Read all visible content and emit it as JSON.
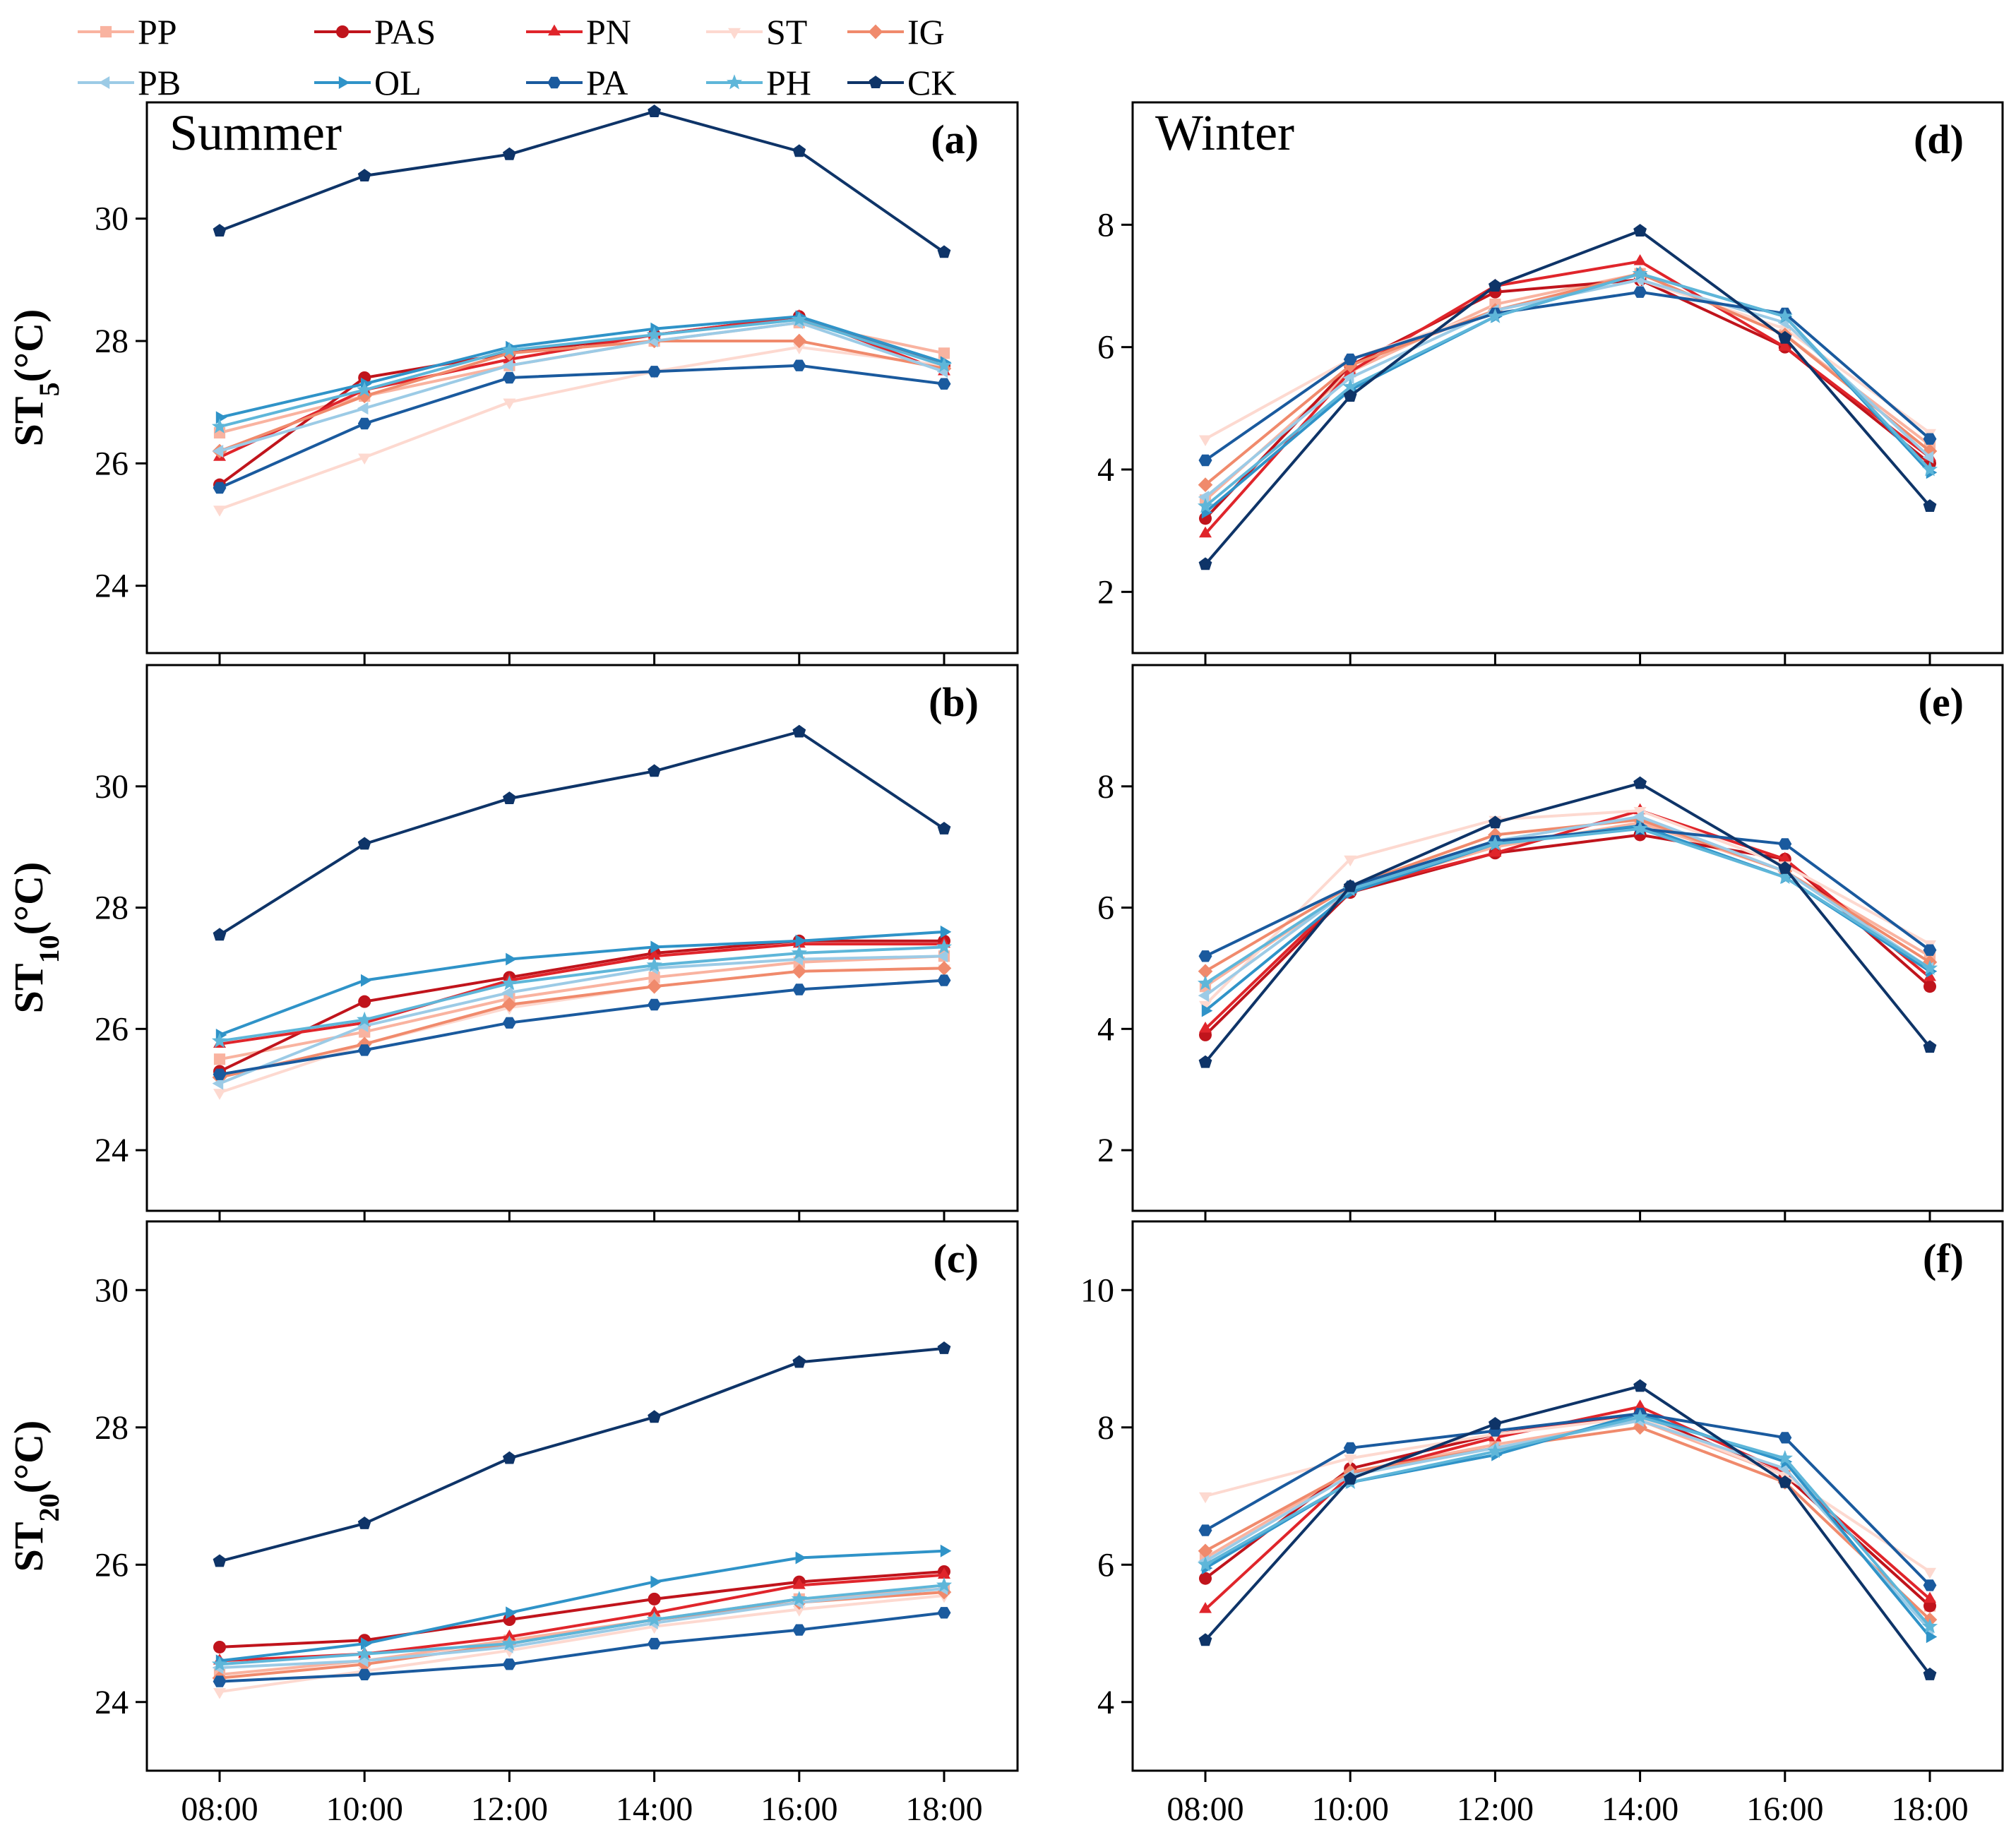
{
  "legend": [
    {
      "name": "PP",
      "color": "#f9b3a0",
      "marker": "square"
    },
    {
      "name": "PAS",
      "color": "#c0141c",
      "marker": "circle"
    },
    {
      "name": "PN",
      "color": "#e0252b",
      "marker": "triangle-up"
    },
    {
      "name": "ST",
      "color": "#fdd9d0",
      "marker": "triangle-down"
    },
    {
      "name": "IG",
      "color": "#f08a6c",
      "marker": "diamond"
    },
    {
      "name": "PB",
      "color": "#9ccbe6",
      "marker": "triangle-left"
    },
    {
      "name": "OL",
      "color": "#2f93c8",
      "marker": "triangle-right"
    },
    {
      "name": "PA",
      "color": "#1a5a9e",
      "marker": "hexagon"
    },
    {
      "name": "PH",
      "color": "#5eb6d9",
      "marker": "star"
    },
    {
      "name": "CK",
      "color": "#0e3468",
      "marker": "pentagon"
    }
  ],
  "row_labels": [
    {
      "main": "ST",
      "sub": "5",
      "unit": "(°C)"
    },
    {
      "main": "ST",
      "sub": "10",
      "unit": "(°C)"
    },
    {
      "main": "ST",
      "sub": "20",
      "unit": "(°C)"
    }
  ],
  "chart_data": [
    {
      "id": "a",
      "label": "(a)",
      "season": "Summer",
      "type": "line",
      "x": [
        "08:00",
        "10:00",
        "12:00",
        "14:00",
        "16:00",
        "18:00"
      ],
      "ylim": [
        22.9,
        31.9
      ],
      "yticks": [
        24,
        26,
        28,
        30
      ],
      "series": [
        {
          "name": "PP",
          "values": [
            26.5,
            27.1,
            27.6,
            28.0,
            28.3,
            27.8
          ]
        },
        {
          "name": "PAS",
          "values": [
            25.65,
            27.4,
            27.8,
            28.1,
            28.4,
            27.6
          ]
        },
        {
          "name": "PN",
          "values": [
            26.1,
            27.2,
            27.7,
            28.1,
            28.4,
            27.5
          ]
        },
        {
          "name": "ST",
          "values": [
            25.25,
            26.1,
            27.0,
            27.5,
            27.9,
            27.6
          ]
        },
        {
          "name": "IG",
          "values": [
            26.2,
            27.1,
            27.8,
            28.0,
            28.0,
            27.55
          ]
        },
        {
          "name": "PB",
          "values": [
            26.2,
            26.9,
            27.6,
            28.0,
            28.3,
            27.5
          ]
        },
        {
          "name": "OL",
          "values": [
            26.75,
            27.3,
            27.9,
            28.2,
            28.4,
            27.65
          ]
        },
        {
          "name": "PA",
          "values": [
            25.6,
            26.65,
            27.4,
            27.5,
            27.6,
            27.3
          ]
        },
        {
          "name": "PH",
          "values": [
            26.6,
            27.2,
            27.85,
            28.1,
            28.35,
            27.6
          ]
        },
        {
          "name": "CK",
          "values": [
            29.8,
            30.7,
            31.05,
            31.75,
            31.1,
            29.45
          ]
        }
      ]
    },
    {
      "id": "d",
      "label": "(d)",
      "season": "Winter",
      "type": "line",
      "x": [
        "08:00",
        "10:00",
        "12:00",
        "14:00",
        "16:00",
        "18:00"
      ],
      "ylim": [
        1.0,
        10.0
      ],
      "yticks": [
        2,
        4,
        6,
        8
      ],
      "series": [
        {
          "name": "PP",
          "values": [
            3.5,
            5.6,
            6.7,
            7.2,
            6.2,
            4.4
          ]
        },
        {
          "name": "PAS",
          "values": [
            3.2,
            5.7,
            6.9,
            7.1,
            6.0,
            4.1
          ]
        },
        {
          "name": "PN",
          "values": [
            2.95,
            5.6,
            7.0,
            7.4,
            6.0,
            4.2
          ]
        },
        {
          "name": "ST",
          "values": [
            4.5,
            5.8,
            6.6,
            7.1,
            6.3,
            4.6
          ]
        },
        {
          "name": "IG",
          "values": [
            3.75,
            5.7,
            6.6,
            7.2,
            6.2,
            4.3
          ]
        },
        {
          "name": "PB",
          "values": [
            3.55,
            5.5,
            6.6,
            7.1,
            6.4,
            4.2
          ]
        },
        {
          "name": "OL",
          "values": [
            3.3,
            5.3,
            6.5,
            7.2,
            6.5,
            3.95
          ]
        },
        {
          "name": "PA",
          "values": [
            4.15,
            5.8,
            6.55,
            6.9,
            6.55,
            4.5
          ]
        },
        {
          "name": "PH",
          "values": [
            3.4,
            5.35,
            6.5,
            7.2,
            6.5,
            4.0
          ]
        },
        {
          "name": "CK",
          "values": [
            2.45,
            5.2,
            7.0,
            7.9,
            6.15,
            3.4
          ]
        }
      ]
    },
    {
      "id": "b",
      "label": "(b)",
      "season": "",
      "type": "line",
      "x": [
        "08:00",
        "10:00",
        "12:00",
        "14:00",
        "16:00",
        "18:00"
      ],
      "ylim": [
        23.0,
        32.0
      ],
      "yticks": [
        24,
        26,
        28,
        30
      ],
      "series": [
        {
          "name": "PP",
          "values": [
            25.5,
            25.95,
            26.5,
            26.85,
            27.1,
            27.2
          ]
        },
        {
          "name": "PAS",
          "values": [
            25.3,
            26.45,
            26.85,
            27.25,
            27.45,
            27.45
          ]
        },
        {
          "name": "PN",
          "values": [
            25.75,
            26.1,
            26.8,
            27.2,
            27.4,
            27.4
          ]
        },
        {
          "name": "ST",
          "values": [
            24.95,
            25.75,
            26.35,
            26.7,
            26.95,
            27.0
          ]
        },
        {
          "name": "IG",
          "values": [
            25.2,
            25.75,
            26.4,
            26.7,
            26.95,
            27.0
          ]
        },
        {
          "name": "PB",
          "values": [
            25.1,
            26.05,
            26.6,
            27.0,
            27.15,
            27.2
          ]
        },
        {
          "name": "OL",
          "values": [
            25.9,
            26.8,
            27.15,
            27.35,
            27.45,
            27.6
          ]
        },
        {
          "name": "PA",
          "values": [
            25.25,
            25.65,
            26.1,
            26.4,
            26.65,
            26.8
          ]
        },
        {
          "name": "PH",
          "values": [
            25.8,
            26.15,
            26.75,
            27.05,
            27.25,
            27.35
          ]
        },
        {
          "name": "CK",
          "values": [
            27.55,
            29.05,
            29.8,
            30.25,
            30.9,
            29.3
          ]
        }
      ]
    },
    {
      "id": "e",
      "label": "(e)",
      "season": "",
      "type": "line",
      "x": [
        "08:00",
        "10:00",
        "12:00",
        "14:00",
        "16:00",
        "18:00"
      ],
      "ylim": [
        1.0,
        10.0
      ],
      "yticks": [
        2,
        4,
        6,
        8
      ],
      "series": [
        {
          "name": "PP",
          "values": [
            4.7,
            6.3,
            7.0,
            7.4,
            6.6,
            5.2
          ]
        },
        {
          "name": "PAS",
          "values": [
            3.9,
            6.25,
            6.9,
            7.2,
            6.8,
            4.7
          ]
        },
        {
          "name": "PN",
          "values": [
            4.0,
            6.3,
            6.9,
            7.6,
            6.8,
            4.85
          ]
        },
        {
          "name": "ST",
          "values": [
            4.4,
            6.8,
            7.45,
            7.6,
            6.7,
            5.4
          ]
        },
        {
          "name": "IG",
          "values": [
            4.95,
            6.35,
            7.2,
            7.45,
            6.6,
            5.1
          ]
        },
        {
          "name": "PB",
          "values": [
            4.55,
            6.3,
            7.1,
            7.5,
            6.6,
            5.0
          ]
        },
        {
          "name": "OL",
          "values": [
            4.3,
            6.25,
            7.05,
            7.35,
            6.5,
            4.95
          ]
        },
        {
          "name": "PA",
          "values": [
            5.2,
            6.35,
            7.1,
            7.3,
            7.05,
            5.3
          ]
        },
        {
          "name": "PH",
          "values": [
            4.75,
            6.3,
            7.05,
            7.3,
            6.5,
            5.0
          ]
        },
        {
          "name": "CK",
          "values": [
            3.45,
            6.35,
            7.4,
            8.05,
            6.65,
            3.7
          ]
        }
      ]
    },
    {
      "id": "c",
      "label": "(c)",
      "season": "",
      "type": "line",
      "x": [
        "08:00",
        "10:00",
        "12:00",
        "14:00",
        "16:00",
        "18:00"
      ],
      "ylim": [
        23.0,
        31.0
      ],
      "yticks": [
        24,
        26,
        28,
        30
      ],
      "series": [
        {
          "name": "PP",
          "values": [
            24.4,
            24.6,
            24.9,
            25.2,
            25.5,
            25.65
          ]
        },
        {
          "name": "PAS",
          "values": [
            24.8,
            24.9,
            25.2,
            25.5,
            25.75,
            25.9
          ]
        },
        {
          "name": "PN",
          "values": [
            24.6,
            24.7,
            24.95,
            25.3,
            25.7,
            25.85
          ]
        },
        {
          "name": "ST",
          "values": [
            24.15,
            24.45,
            24.75,
            25.1,
            25.35,
            25.55
          ]
        },
        {
          "name": "IG",
          "values": [
            24.35,
            24.55,
            24.85,
            25.2,
            25.45,
            25.6
          ]
        },
        {
          "name": "PB",
          "values": [
            24.5,
            24.6,
            24.8,
            25.15,
            25.45,
            25.65
          ]
        },
        {
          "name": "OL",
          "values": [
            24.6,
            24.85,
            25.3,
            25.75,
            26.1,
            26.2
          ]
        },
        {
          "name": "PA",
          "values": [
            24.3,
            24.4,
            24.55,
            24.85,
            25.05,
            25.3
          ]
        },
        {
          "name": "PH",
          "values": [
            24.55,
            24.7,
            24.85,
            25.2,
            25.5,
            25.7
          ]
        },
        {
          "name": "CK",
          "values": [
            26.05,
            26.6,
            27.55,
            28.15,
            28.95,
            29.15
          ]
        }
      ]
    },
    {
      "id": "f",
      "label": "(f)",
      "season": "",
      "type": "line",
      "x": [
        "08:00",
        "10:00",
        "12:00",
        "14:00",
        "16:00",
        "18:00"
      ],
      "ylim": [
        3.0,
        11.0
      ],
      "yticks": [
        4,
        6,
        8,
        10
      ],
      "series": [
        {
          "name": "PP",
          "values": [
            6.1,
            7.35,
            7.75,
            8.1,
            7.3,
            5.4
          ]
        },
        {
          "name": "PAS",
          "values": [
            5.8,
            7.4,
            7.9,
            8.2,
            7.3,
            5.4
          ]
        },
        {
          "name": "PN",
          "values": [
            5.35,
            7.3,
            7.85,
            8.3,
            7.35,
            5.5
          ]
        },
        {
          "name": "ST",
          "values": [
            7.0,
            7.55,
            7.9,
            8.15,
            7.3,
            5.9
          ]
        },
        {
          "name": "IG",
          "values": [
            6.2,
            7.35,
            7.7,
            8.0,
            7.2,
            5.2
          ]
        },
        {
          "name": "PB",
          "values": [
            6.05,
            7.3,
            7.7,
            8.1,
            7.4,
            5.05
          ]
        },
        {
          "name": "OL",
          "values": [
            5.95,
            7.2,
            7.6,
            8.2,
            7.5,
            4.95
          ]
        },
        {
          "name": "PA",
          "values": [
            6.5,
            7.7,
            7.95,
            8.2,
            7.85,
            5.7
          ]
        },
        {
          "name": "PH",
          "values": [
            6.0,
            7.2,
            7.65,
            8.15,
            7.55,
            5.1
          ]
        },
        {
          "name": "CK",
          "values": [
            4.9,
            7.25,
            8.05,
            8.6,
            7.2,
            4.4
          ]
        }
      ]
    }
  ]
}
